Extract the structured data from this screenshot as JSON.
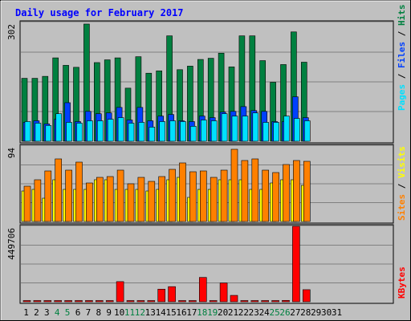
{
  "title": "Daily usage for February 2017",
  "colors": {
    "background": "#c0c0c0",
    "title": "#0000ff",
    "hits": "#008040",
    "files": "#0040ff",
    "pages": "#00e0ff",
    "visits": "#ffff00",
    "sites": "#ff8000",
    "kbytes": "#ff0000",
    "weekend_label": "#008040"
  },
  "chart_data": [
    {
      "type": "bar",
      "name": "hits-files-pages",
      "max_label": "302",
      "ymax": 302,
      "categories": [
        "1",
        "2",
        "3",
        "4",
        "5",
        "6",
        "7",
        "8",
        "9",
        "10",
        "11",
        "12",
        "13",
        "14",
        "15",
        "16",
        "17",
        "18",
        "19",
        "20",
        "21",
        "22",
        "23",
        "24",
        "25",
        "26",
        "27",
        "28"
      ],
      "series": [
        {
          "name": "Hits",
          "values": [
            160,
            160,
            165,
            212,
            193,
            188,
            298,
            200,
            207,
            212,
            135,
            215,
            173,
            179,
            268,
            182,
            191,
            208,
            211,
            224,
            189,
            268,
            268,
            205,
            150,
            195,
            278,
            201
          ]
        },
        {
          "name": "Files",
          "values": [
            48,
            52,
            44,
            56,
            98,
            50,
            76,
            70,
            72,
            86,
            54,
            86,
            52,
            64,
            68,
            52,
            50,
            64,
            60,
            74,
            76,
            88,
            78,
            76,
            50,
            50,
            113,
            60
          ]
        },
        {
          "name": "Pages",
          "values": [
            50,
            46,
            40,
            70,
            48,
            46,
            52,
            52,
            56,
            60,
            46,
            48,
            36,
            50,
            52,
            50,
            38,
            54,
            52,
            70,
            64,
            64,
            72,
            48,
            48,
            64,
            58,
            52
          ]
        }
      ],
      "legend": [
        "Pages",
        "Files",
        "Hits"
      ]
    },
    {
      "type": "bar",
      "name": "visits-sites",
      "max_label": "94",
      "ymax": 94,
      "categories": [
        "1",
        "2",
        "3",
        "4",
        "5",
        "6",
        "7",
        "8",
        "9",
        "10",
        "11",
        "12",
        "13",
        "14",
        "15",
        "16",
        "17",
        "18",
        "19",
        "20",
        "21",
        "22",
        "23",
        "24",
        "25",
        "26",
        "27",
        "28"
      ],
      "series": [
        {
          "name": "Visits",
          "values": [
            38,
            40,
            29,
            52,
            40,
            40,
            40,
            52,
            52,
            40,
            40,
            40,
            38,
            40,
            52,
            55,
            30,
            40,
            40,
            52,
            52,
            52,
            40,
            40,
            48,
            52,
            52,
            45
          ]
        },
        {
          "name": "Sites",
          "values": [
            44,
            52,
            63,
            78,
            64,
            74,
            48,
            55,
            56,
            64,
            47,
            55,
            50,
            56,
            65,
            73,
            62,
            63,
            55,
            64,
            90,
            76,
            78,
            64,
            61,
            71,
            76,
            75
          ]
        }
      ],
      "legend": [
        "Sites",
        "Visits"
      ]
    },
    {
      "type": "bar",
      "name": "kbytes",
      "max_label": "449706",
      "ymax": 449706,
      "categories": [
        "1",
        "2",
        "3",
        "4",
        "5",
        "6",
        "7",
        "8",
        "9",
        "10",
        "11",
        "12",
        "13",
        "14",
        "15",
        "16",
        "17",
        "18",
        "19",
        "20",
        "21",
        "22",
        "23",
        "24",
        "25",
        "26",
        "27",
        "28"
      ],
      "series": [
        {
          "name": "KBytes",
          "values": [
            0,
            0,
            0,
            0,
            0,
            0,
            0,
            0,
            0,
            120000,
            0,
            0,
            0,
            75000,
            90000,
            0,
            0,
            145000,
            0,
            112000,
            38000,
            0,
            0,
            0,
            0,
            8000,
            449706,
            72000
          ]
        }
      ],
      "legend": [
        "KBytes"
      ]
    }
  ],
  "x_labels": [
    "1",
    "2",
    "3",
    "4",
    "5",
    "6",
    "7",
    "8",
    "9",
    "10",
    "11",
    "12",
    "13",
    "14",
    "15",
    "16",
    "17",
    "18",
    "19",
    "20",
    "21",
    "22",
    "23",
    "24",
    "25",
    "26",
    "27",
    "28",
    "29",
    "30",
    "31"
  ],
  "weekend_days": [
    4,
    5,
    11,
    12,
    18,
    19,
    25,
    26
  ]
}
